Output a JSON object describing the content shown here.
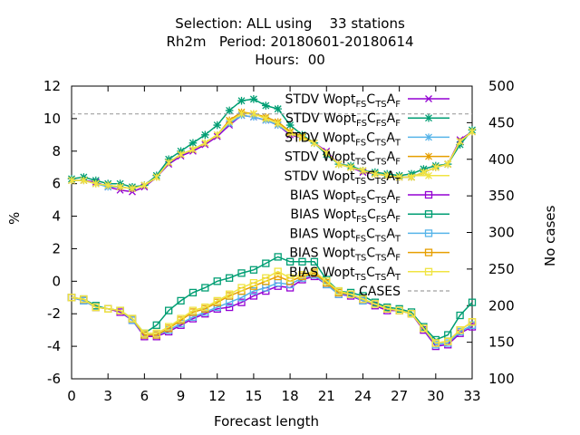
{
  "title_lines": [
    "Selection: ALL using    33 stations",
    "Rh2m   Period: 20180601-20180614",
    "Hours:  00"
  ],
  "chart_data": {
    "type": "line",
    "xlabel": "Forecast length",
    "ylabel": "%",
    "y2label": "No cases",
    "xlim": [
      0,
      33
    ],
    "ylim": [
      -6,
      12
    ],
    "y2lim": [
      100,
      500
    ],
    "xticks": [
      0,
      3,
      6,
      9,
      12,
      15,
      18,
      21,
      24,
      27,
      30,
      33
    ],
    "yticks": [
      -6,
      -4,
      -2,
      0,
      2,
      4,
      6,
      8,
      10,
      12
    ],
    "y2ticks": [
      100,
      150,
      200,
      250,
      300,
      350,
      400,
      450,
      500
    ],
    "grid": false,
    "legend_position": "top-right inside",
    "x": [
      0,
      1,
      2,
      3,
      4,
      5,
      6,
      7,
      8,
      9,
      10,
      11,
      12,
      13,
      14,
      15,
      16,
      17,
      18,
      19,
      20,
      21,
      22,
      23,
      24,
      25,
      26,
      27,
      28,
      29,
      30,
      31,
      32,
      33
    ],
    "series": [
      {
        "name": "STDV Wopt_FS C_TS A_F",
        "legend_main": "STDV Wopt",
        "legend_parts": [
          [
            "FS",
            "sub"
          ],
          [
            "C",
            ""
          ],
          [
            "TS",
            "sub"
          ],
          [
            "A",
            ""
          ],
          [
            "F",
            "sub"
          ]
        ],
        "color": "#9400d3",
        "marker": "x",
        "axis": "y1",
        "values": [
          6.2,
          6.2,
          6.1,
          5.8,
          5.6,
          5.5,
          5.8,
          6.4,
          7.2,
          7.7,
          8.0,
          8.4,
          8.9,
          9.6,
          10.2,
          10.1,
          9.9,
          9.6,
          9.0,
          8.8,
          8.5,
          8.0,
          7.2,
          7.0,
          6.7,
          6.6,
          6.5,
          6.4,
          6.4,
          6.7,
          7.0,
          7.2,
          8.7,
          9.2
        ]
      },
      {
        "name": "STDV Wopt_FS C_FS A_F",
        "legend_main": "STDV Wopt",
        "legend_parts": [
          [
            "FS",
            "sub"
          ],
          [
            "C",
            ""
          ],
          [
            "FS",
            "sub"
          ],
          [
            "A",
            ""
          ],
          [
            "F",
            "sub"
          ]
        ],
        "color": "#009e73",
        "marker": "star",
        "axis": "y1",
        "values": [
          6.3,
          6.4,
          6.2,
          6.0,
          6.0,
          5.8,
          5.9,
          6.5,
          7.5,
          8.0,
          8.5,
          9.0,
          9.6,
          10.5,
          11.1,
          11.2,
          10.8,
          10.6,
          9.6,
          9.0,
          8.5,
          7.8,
          7.2,
          7.1,
          6.8,
          6.7,
          6.6,
          6.5,
          6.6,
          6.9,
          7.1,
          7.2,
          8.4,
          9.3
        ]
      },
      {
        "name": "STDV Wopt_FS C_TS A_T",
        "legend_main": "STDV Wopt",
        "legend_parts": [
          [
            "FS",
            "sub"
          ],
          [
            "C",
            ""
          ],
          [
            "TS",
            "sub"
          ],
          [
            "A",
            ""
          ],
          [
            "T",
            "sub"
          ]
        ],
        "color": "#56b4e9",
        "marker": "asterisk",
        "axis": "y1",
        "values": [
          6.2,
          6.2,
          6.0,
          5.8,
          5.8,
          5.7,
          5.9,
          6.4,
          7.3,
          7.8,
          8.1,
          8.5,
          9.0,
          9.7,
          10.2,
          10.1,
          9.9,
          9.6,
          9.1,
          8.8,
          8.5,
          7.9,
          7.2,
          7.0,
          6.8,
          6.6,
          6.5,
          6.4,
          6.4,
          6.7,
          7.0,
          7.2,
          8.6,
          9.2
        ]
      },
      {
        "name": "STDV Wopt_TS C_TS A_F",
        "legend_main": "STDV Wopt",
        "legend_parts": [
          [
            "TS",
            "sub"
          ],
          [
            "C",
            ""
          ],
          [
            "TS",
            "sub"
          ],
          [
            "A",
            ""
          ],
          [
            "F",
            "sub"
          ]
        ],
        "color": "#e69f00",
        "marker": "asterisk",
        "axis": "y1",
        "values": [
          6.2,
          6.2,
          6.0,
          5.9,
          5.8,
          5.7,
          5.9,
          6.4,
          7.3,
          7.8,
          8.1,
          8.5,
          9.0,
          9.9,
          10.4,
          10.3,
          10.1,
          9.8,
          9.2,
          8.9,
          8.5,
          7.9,
          7.2,
          7.0,
          6.8,
          6.6,
          6.5,
          6.4,
          6.4,
          6.7,
          7.0,
          7.2,
          8.6,
          9.2
        ]
      },
      {
        "name": "STDV Wopt_TS C_TS A_T",
        "legend_main": "STDV Wopt",
        "legend_parts": [
          [
            "TS",
            "sub"
          ],
          [
            "C",
            ""
          ],
          [
            "TS",
            "sub"
          ],
          [
            "A",
            ""
          ],
          [
            "T",
            "sub"
          ]
        ],
        "color": "#f0e442",
        "marker": "asterisk",
        "axis": "y1",
        "values": [
          6.2,
          6.2,
          6.0,
          5.9,
          5.8,
          5.7,
          5.9,
          6.4,
          7.3,
          7.8,
          8.1,
          8.5,
          9.0,
          9.8,
          10.3,
          10.3,
          10.0,
          9.7,
          9.1,
          8.8,
          8.5,
          7.9,
          7.2,
          7.0,
          6.8,
          6.6,
          6.5,
          6.4,
          6.4,
          6.7,
          7.0,
          7.2,
          8.6,
          9.2
        ]
      },
      {
        "name": "BIAS Wopt_FS C_TS A_F",
        "legend_main": "BIAS Wopt",
        "legend_parts": [
          [
            "FS",
            "sub"
          ],
          [
            "C",
            ""
          ],
          [
            "TS",
            "sub"
          ],
          [
            "A",
            ""
          ],
          [
            "F",
            "sub"
          ]
        ],
        "color": "#9400d3",
        "marker": "square",
        "axis": "y1",
        "values": [
          -1.0,
          -1.2,
          -1.6,
          -1.7,
          -1.9,
          -2.4,
          -3.4,
          -3.4,
          -3.1,
          -2.7,
          -2.3,
          -2.0,
          -1.7,
          -1.6,
          -1.3,
          -0.9,
          -0.6,
          -0.3,
          -0.4,
          0.1,
          0.3,
          -0.2,
          -0.8,
          -0.9,
          -1.2,
          -1.5,
          -1.8,
          -1.8,
          -2.0,
          -3.0,
          -4.0,
          -3.9,
          -3.2,
          -2.8
        ]
      },
      {
        "name": "BIAS Wopt_FS C_FS A_F",
        "legend_main": "BIAS Wopt",
        "legend_parts": [
          [
            "FS",
            "sub"
          ],
          [
            "C",
            ""
          ],
          [
            "FS",
            "sub"
          ],
          [
            "A",
            ""
          ],
          [
            "F",
            "sub"
          ]
        ],
        "color": "#009e73",
        "marker": "square",
        "axis": "y1",
        "values": [
          -1.0,
          -1.1,
          -1.5,
          -1.7,
          -1.8,
          -2.3,
          -3.2,
          -2.7,
          -1.8,
          -1.2,
          -0.7,
          -0.4,
          0.0,
          0.2,
          0.5,
          0.7,
          1.1,
          1.5,
          1.2,
          1.2,
          1.2,
          0.1,
          -0.6,
          -0.7,
          -0.9,
          -1.3,
          -1.6,
          -1.7,
          -1.9,
          -2.8,
          -3.6,
          -3.3,
          -2.1,
          -1.3
        ]
      },
      {
        "name": "BIAS Wopt_FS C_TS A_T",
        "legend_main": "BIAS Wopt",
        "legend_parts": [
          [
            "FS",
            "sub"
          ],
          [
            "C",
            ""
          ],
          [
            "TS",
            "sub"
          ],
          [
            "A",
            ""
          ],
          [
            "T",
            "sub"
          ]
        ],
        "color": "#56b4e9",
        "marker": "square",
        "axis": "y1",
        "values": [
          -1.0,
          -1.2,
          -1.6,
          -1.7,
          -1.8,
          -2.4,
          -3.3,
          -3.3,
          -3.0,
          -2.6,
          -2.2,
          -1.9,
          -1.6,
          -1.3,
          -1.0,
          -0.6,
          -0.4,
          -0.1,
          -0.2,
          0.2,
          0.4,
          -0.2,
          -0.8,
          -0.8,
          -1.2,
          -1.4,
          -1.7,
          -1.8,
          -2.0,
          -2.9,
          -3.9,
          -3.8,
          -3.1,
          -2.7
        ]
      },
      {
        "name": "BIAS Wopt_TS C_TS A_F",
        "legend_main": "BIAS Wopt",
        "legend_parts": [
          [
            "TS",
            "sub"
          ],
          [
            "C",
            ""
          ],
          [
            "TS",
            "sub"
          ],
          [
            "A",
            ""
          ],
          [
            "F",
            "sub"
          ]
        ],
        "color": "#e69f00",
        "marker": "square",
        "axis": "y1",
        "values": [
          -1.0,
          -1.1,
          -1.6,
          -1.7,
          -1.8,
          -2.3,
          -3.3,
          -3.3,
          -2.9,
          -2.4,
          -1.9,
          -1.7,
          -1.3,
          -0.9,
          -0.6,
          -0.3,
          0.0,
          0.3,
          0.0,
          0.3,
          0.5,
          -0.1,
          -0.7,
          -0.8,
          -1.1,
          -1.4,
          -1.7,
          -1.8,
          -2.0,
          -2.9,
          -3.8,
          -3.7,
          -3.0,
          -2.5
        ]
      },
      {
        "name": "BIAS Wopt_TS C_TS A_T",
        "legend_main": "BIAS Wopt",
        "legend_parts": [
          [
            "TS",
            "sub"
          ],
          [
            "C",
            ""
          ],
          [
            "TS",
            "sub"
          ],
          [
            "A",
            ""
          ],
          [
            "T",
            "sub"
          ]
        ],
        "color": "#f0e442",
        "marker": "square",
        "axis": "y1",
        "values": [
          -1.0,
          -1.1,
          -1.6,
          -1.7,
          -1.8,
          -2.3,
          -3.2,
          -3.2,
          -2.8,
          -2.3,
          -1.8,
          -1.6,
          -1.2,
          -0.8,
          -0.4,
          -0.1,
          0.2,
          0.6,
          0.2,
          0.4,
          0.6,
          0.0,
          -0.6,
          -0.8,
          -1.1,
          -1.4,
          -1.7,
          -1.8,
          -2.0,
          -2.9,
          -3.8,
          -3.7,
          -3.0,
          -2.5
        ]
      },
      {
        "name": "CASES",
        "legend_main": "CASES",
        "legend_parts": [],
        "color": "#a0a0a0",
        "marker": "none",
        "dashed": true,
        "axis": "y2",
        "values": [
          462,
          462,
          462,
          462,
          462,
          462,
          462,
          462,
          462,
          462,
          462,
          462,
          462,
          462,
          462,
          462,
          462,
          462,
          462,
          462,
          462,
          462,
          462,
          462,
          462,
          462,
          462,
          462,
          462,
          462,
          462,
          462,
          462,
          462
        ]
      }
    ]
  }
}
